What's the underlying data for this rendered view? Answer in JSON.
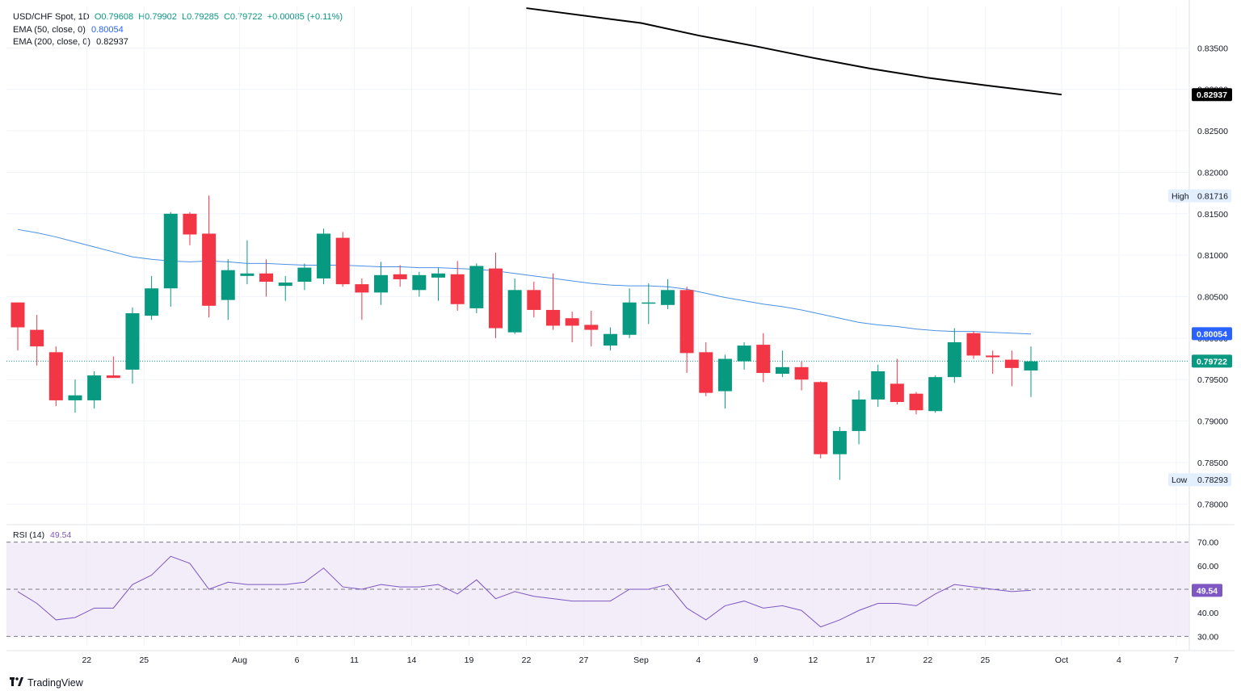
{
  "legend": {
    "symbol": "USD/CHF Spot, 1D",
    "open": "O0.79608",
    "high": "H0.79902",
    "low": "L0.79285",
    "close": "C0.79722",
    "change": "+0.00085 (+0.11%)",
    "ema50_label": "EMA (50, close, 0)",
    "ema50_value": "0.80054",
    "ema200_label": "EMA (200, close, 0)",
    "ema200_value": "0.82937"
  },
  "rsi_legend": {
    "label": "RSI (14)",
    "value": "49.54"
  },
  "branding": {
    "name": "TradingView"
  },
  "colors": {
    "up": "#089981",
    "down": "#f23645",
    "ema50": "#2962ff",
    "ema200": "#000000",
    "rsi": "#7e57c2",
    "rsi_band": "#ede7f6"
  },
  "chart_data": {
    "type": "candlestick",
    "price_axis": {
      "ylim": [
        0.7775,
        0.84
      ],
      "ticks": [
        0.835,
        0.83,
        0.825,
        0.82,
        0.815,
        0.81,
        0.805,
        0.8,
        0.795,
        0.79,
        0.785,
        0.78
      ],
      "tick_labels": [
        "0.83500",
        "0.83000",
        "0.82500",
        "0.82000",
        "0.81500",
        "0.81000",
        "0.80500",
        "0.80000",
        "0.79500",
        "0.79000",
        "0.78500",
        "0.78000"
      ]
    },
    "x_axis_labels": [
      {
        "label": "22",
        "index": 2
      },
      {
        "label": "25",
        "index": 5
      },
      {
        "label": "Aug",
        "index": 10
      },
      {
        "label": "6",
        "index": 13
      },
      {
        "label": "11",
        "index": 16
      },
      {
        "label": "14",
        "index": 19
      },
      {
        "label": "19",
        "index": 22
      },
      {
        "label": "22",
        "index": 25
      },
      {
        "label": "27",
        "index": 28
      },
      {
        "label": "Sep",
        "index": 31
      },
      {
        "label": "4",
        "index": 34
      },
      {
        "label": "9",
        "index": 37
      },
      {
        "label": "12",
        "index": 40
      },
      {
        "label": "17",
        "index": 43
      },
      {
        "label": "22",
        "index": 46
      },
      {
        "label": "25",
        "index": 49
      },
      {
        "label": "Oct",
        "index": 53
      },
      {
        "label": "4",
        "index": 56
      },
      {
        "label": "7",
        "index": 59
      }
    ],
    "candles": [
      {
        "o": 0.8043,
        "h": 0.8043,
        "l": 0.7985,
        "c": 0.8013
      },
      {
        "o": 0.801,
        "h": 0.8028,
        "l": 0.7967,
        "c": 0.799
      },
      {
        "o": 0.7983,
        "h": 0.799,
        "l": 0.7918,
        "c": 0.7925
      },
      {
        "o": 0.7925,
        "h": 0.795,
        "l": 0.791,
        "c": 0.7931
      },
      {
        "o": 0.7925,
        "h": 0.796,
        "l": 0.7915,
        "c": 0.7955
      },
      {
        "o": 0.7955,
        "h": 0.7978,
        "l": 0.7953,
        "c": 0.7952
      },
      {
        "o": 0.7962,
        "h": 0.8037,
        "l": 0.7945,
        "c": 0.803
      },
      {
        "o": 0.8027,
        "h": 0.8075,
        "l": 0.8022,
        "c": 0.806
      },
      {
        "o": 0.806,
        "h": 0.8152,
        "l": 0.8038,
        "c": 0.815
      },
      {
        "o": 0.815,
        "h": 0.8152,
        "l": 0.8112,
        "c": 0.8125
      },
      {
        "o": 0.8126,
        "h": 0.8172,
        "l": 0.8025,
        "c": 0.8039
      },
      {
        "o": 0.8046,
        "h": 0.8095,
        "l": 0.8022,
        "c": 0.8082
      },
      {
        "o": 0.8075,
        "h": 0.8118,
        "l": 0.8065,
        "c": 0.8078
      },
      {
        "o": 0.8078,
        "h": 0.8095,
        "l": 0.805,
        "c": 0.8068
      },
      {
        "o": 0.8063,
        "h": 0.8075,
        "l": 0.8045,
        "c": 0.8067
      },
      {
        "o": 0.8068,
        "h": 0.809,
        "l": 0.8058,
        "c": 0.8085
      },
      {
        "o": 0.8072,
        "h": 0.8132,
        "l": 0.8065,
        "c": 0.8126
      },
      {
        "o": 0.8121,
        "h": 0.8128,
        "l": 0.8062,
        "c": 0.8065
      },
      {
        "o": 0.8065,
        "h": 0.8072,
        "l": 0.8022,
        "c": 0.8055
      },
      {
        "o": 0.8055,
        "h": 0.8092,
        "l": 0.804,
        "c": 0.8076
      },
      {
        "o": 0.8077,
        "h": 0.8088,
        "l": 0.8062,
        "c": 0.8071
      },
      {
        "o": 0.8058,
        "h": 0.808,
        "l": 0.805,
        "c": 0.8076
      },
      {
        "o": 0.8073,
        "h": 0.8085,
        "l": 0.8045,
        "c": 0.8078
      },
      {
        "o": 0.8077,
        "h": 0.8093,
        "l": 0.8033,
        "c": 0.8041
      },
      {
        "o": 0.8036,
        "h": 0.809,
        "l": 0.803,
        "c": 0.8087
      },
      {
        "o": 0.8084,
        "h": 0.8103,
        "l": 0.8,
        "c": 0.8012
      },
      {
        "o": 0.8007,
        "h": 0.8072,
        "l": 0.8005,
        "c": 0.8058
      },
      {
        "o": 0.8058,
        "h": 0.8068,
        "l": 0.8025,
        "c": 0.8034
      },
      {
        "o": 0.8034,
        "h": 0.8078,
        "l": 0.801,
        "c": 0.8015
      },
      {
        "o": 0.8024,
        "h": 0.8032,
        "l": 0.7995,
        "c": 0.8015
      },
      {
        "o": 0.8016,
        "h": 0.8033,
        "l": 0.799,
        "c": 0.801
      },
      {
        "o": 0.7991,
        "h": 0.8013,
        "l": 0.7985,
        "c": 0.8005
      },
      {
        "o": 0.8004,
        "h": 0.806,
        "l": 0.8,
        "c": 0.8043
      },
      {
        "o": 0.8043,
        "h": 0.8066,
        "l": 0.8017,
        "c": 0.8043
      },
      {
        "o": 0.804,
        "h": 0.8071,
        "l": 0.8035,
        "c": 0.8058
      },
      {
        "o": 0.8058,
        "h": 0.8062,
        "l": 0.7958,
        "c": 0.7982
      },
      {
        "o": 0.7983,
        "h": 0.7995,
        "l": 0.793,
        "c": 0.7934
      },
      {
        "o": 0.7936,
        "h": 0.798,
        "l": 0.7915,
        "c": 0.7975
      },
      {
        "o": 0.7972,
        "h": 0.7995,
        "l": 0.7962,
        "c": 0.7991
      },
      {
        "o": 0.7992,
        "h": 0.8006,
        "l": 0.7947,
        "c": 0.7958
      },
      {
        "o": 0.7957,
        "h": 0.7985,
        "l": 0.7953,
        "c": 0.7965
      },
      {
        "o": 0.7965,
        "h": 0.7972,
        "l": 0.7937,
        "c": 0.795
      },
      {
        "o": 0.7947,
        "h": 0.7948,
        "l": 0.7855,
        "c": 0.786
      },
      {
        "o": 0.786,
        "h": 0.7893,
        "l": 0.7829,
        "c": 0.7888
      },
      {
        "o": 0.7888,
        "h": 0.7937,
        "l": 0.7872,
        "c": 0.7926
      },
      {
        "o": 0.7926,
        "h": 0.7968,
        "l": 0.7917,
        "c": 0.796
      },
      {
        "o": 0.7945,
        "h": 0.7975,
        "l": 0.792,
        "c": 0.7923
      },
      {
        "o": 0.7933,
        "h": 0.7935,
        "l": 0.7908,
        "c": 0.7913
      },
      {
        "o": 0.7912,
        "h": 0.7955,
        "l": 0.791,
        "c": 0.7953
      },
      {
        "o": 0.7953,
        "h": 0.8012,
        "l": 0.7946,
        "c": 0.7995
      },
      {
        "o": 0.8006,
        "h": 0.8008,
        "l": 0.7975,
        "c": 0.7979
      },
      {
        "o": 0.7979,
        "h": 0.7985,
        "l": 0.7957,
        "c": 0.7977
      },
      {
        "o": 0.7974,
        "h": 0.7985,
        "l": 0.7942,
        "c": 0.7964
      },
      {
        "o": 0.7961,
        "h": 0.799,
        "l": 0.7929,
        "c": 0.7972
      }
    ],
    "ema50": [
      0.8131,
      0.8127,
      0.8122,
      0.8116,
      0.811,
      0.8104,
      0.8098,
      0.8095,
      0.8093,
      0.8092,
      0.8093,
      0.8092,
      0.809,
      0.809,
      0.8089,
      0.8088,
      0.8088,
      0.8088,
      0.8087,
      0.8086,
      0.8086,
      0.8085,
      0.8085,
      0.8084,
      0.8083,
      0.8081,
      0.8078,
      0.8075,
      0.8072,
      0.8069,
      0.8066,
      0.8064,
      0.8063,
      0.8063,
      0.8062,
      0.8059,
      0.8054,
      0.8049,
      0.8045,
      0.8041,
      0.8038,
      0.8034,
      0.8029,
      0.8024,
      0.8019,
      0.8016,
      0.8014,
      0.8011,
      0.8009,
      0.8008,
      0.8008,
      0.8007,
      0.8006,
      0.8005
    ],
    "ema200_segment": {
      "start_index": 25,
      "start_value": 0.8398,
      "end_index": 53,
      "end_value": 0.82937,
      "points": [
        [
          25,
          0.8398
        ],
        [
          31,
          0.838
        ],
        [
          34,
          0.8365
        ],
        [
          37,
          0.8352
        ],
        [
          40,
          0.8338
        ],
        [
          43,
          0.8325
        ],
        [
          46,
          0.8314
        ],
        [
          49,
          0.8305
        ],
        [
          53,
          0.82937
        ]
      ]
    },
    "price_labels": [
      {
        "label": "0.82937",
        "value": 0.82937,
        "style": "ema200"
      },
      {
        "label": "0.80054",
        "value": 0.80054,
        "style": "ema50"
      },
      {
        "label": "0.79722",
        "value": 0.79722,
        "style": "last"
      }
    ],
    "high_marker": {
      "label": "High",
      "value": 0.81716,
      "text": "0.81716"
    },
    "low_marker": {
      "label": "Low",
      "value": 0.78293,
      "text": "0.78293"
    },
    "last_price": 0.79722,
    "rsi": {
      "ylim": [
        26,
        74
      ],
      "band": [
        30,
        70
      ],
      "midline": 50,
      "ticks": [
        70,
        60,
        50,
        40,
        30
      ],
      "tick_labels": [
        "70.00",
        "60.00",
        "50.00",
        "40.00",
        "30.00"
      ],
      "current_label": "49.54",
      "values": [
        49,
        44,
        37,
        38,
        42,
        42,
        52,
        56,
        64,
        61,
        50,
        53,
        52,
        52,
        52,
        53,
        59,
        51,
        50,
        52,
        51,
        51,
        52,
        48,
        54,
        46,
        49,
        47,
        46,
        45,
        45,
        45,
        50,
        50,
        52,
        42,
        37,
        43,
        45,
        42,
        43,
        41,
        34,
        37,
        41,
        44,
        44,
        43,
        48,
        52,
        51,
        50,
        49,
        49.54
      ]
    }
  }
}
